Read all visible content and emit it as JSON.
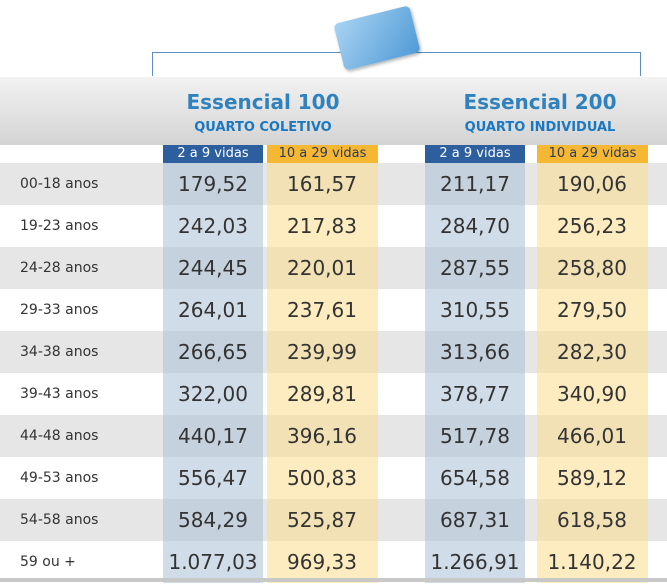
{
  "plans": [
    {
      "title": "Essencial 100",
      "subtitle": "QUARTO COLETIVO",
      "columns": [
        "2 a 9 vidas",
        "10 a 29 vidas"
      ]
    },
    {
      "title": "Essencial 200",
      "subtitle": "QUARTO INDIVIDUAL",
      "columns": [
        "2 a 9 vidas",
        "10 a 29 vidas"
      ]
    }
  ],
  "table": {
    "rows": [
      [
        "00-18 anos",
        "179,52",
        "161,57",
        "211,17",
        "190,06"
      ],
      [
        "19-23 anos",
        "242,03",
        "217,83",
        "284,70",
        "256,23"
      ],
      [
        "24-28 anos",
        "244,45",
        "220,01",
        "287,55",
        "258,80"
      ],
      [
        "29-33 anos",
        "264,01",
        "237,61",
        "310,55",
        "279,50"
      ],
      [
        "34-38 anos",
        "266,65",
        "239,99",
        "313,66",
        "282,30"
      ],
      [
        "39-43 anos",
        "322,00",
        "289,81",
        "378,77",
        "340,90"
      ],
      [
        "44-48 anos",
        "440,17",
        "396,16",
        "517,78",
        "466,01"
      ],
      [
        "49-53 anos",
        "556,47",
        "500,83",
        "654,58",
        "589,12"
      ],
      [
        "54-58 anos",
        "584,29",
        "525,87",
        "687,31",
        "618,58"
      ],
      [
        "59 ou +",
        "1.077,03",
        "969,33",
        "1.266,91",
        "1.140,22"
      ]
    ]
  }
}
